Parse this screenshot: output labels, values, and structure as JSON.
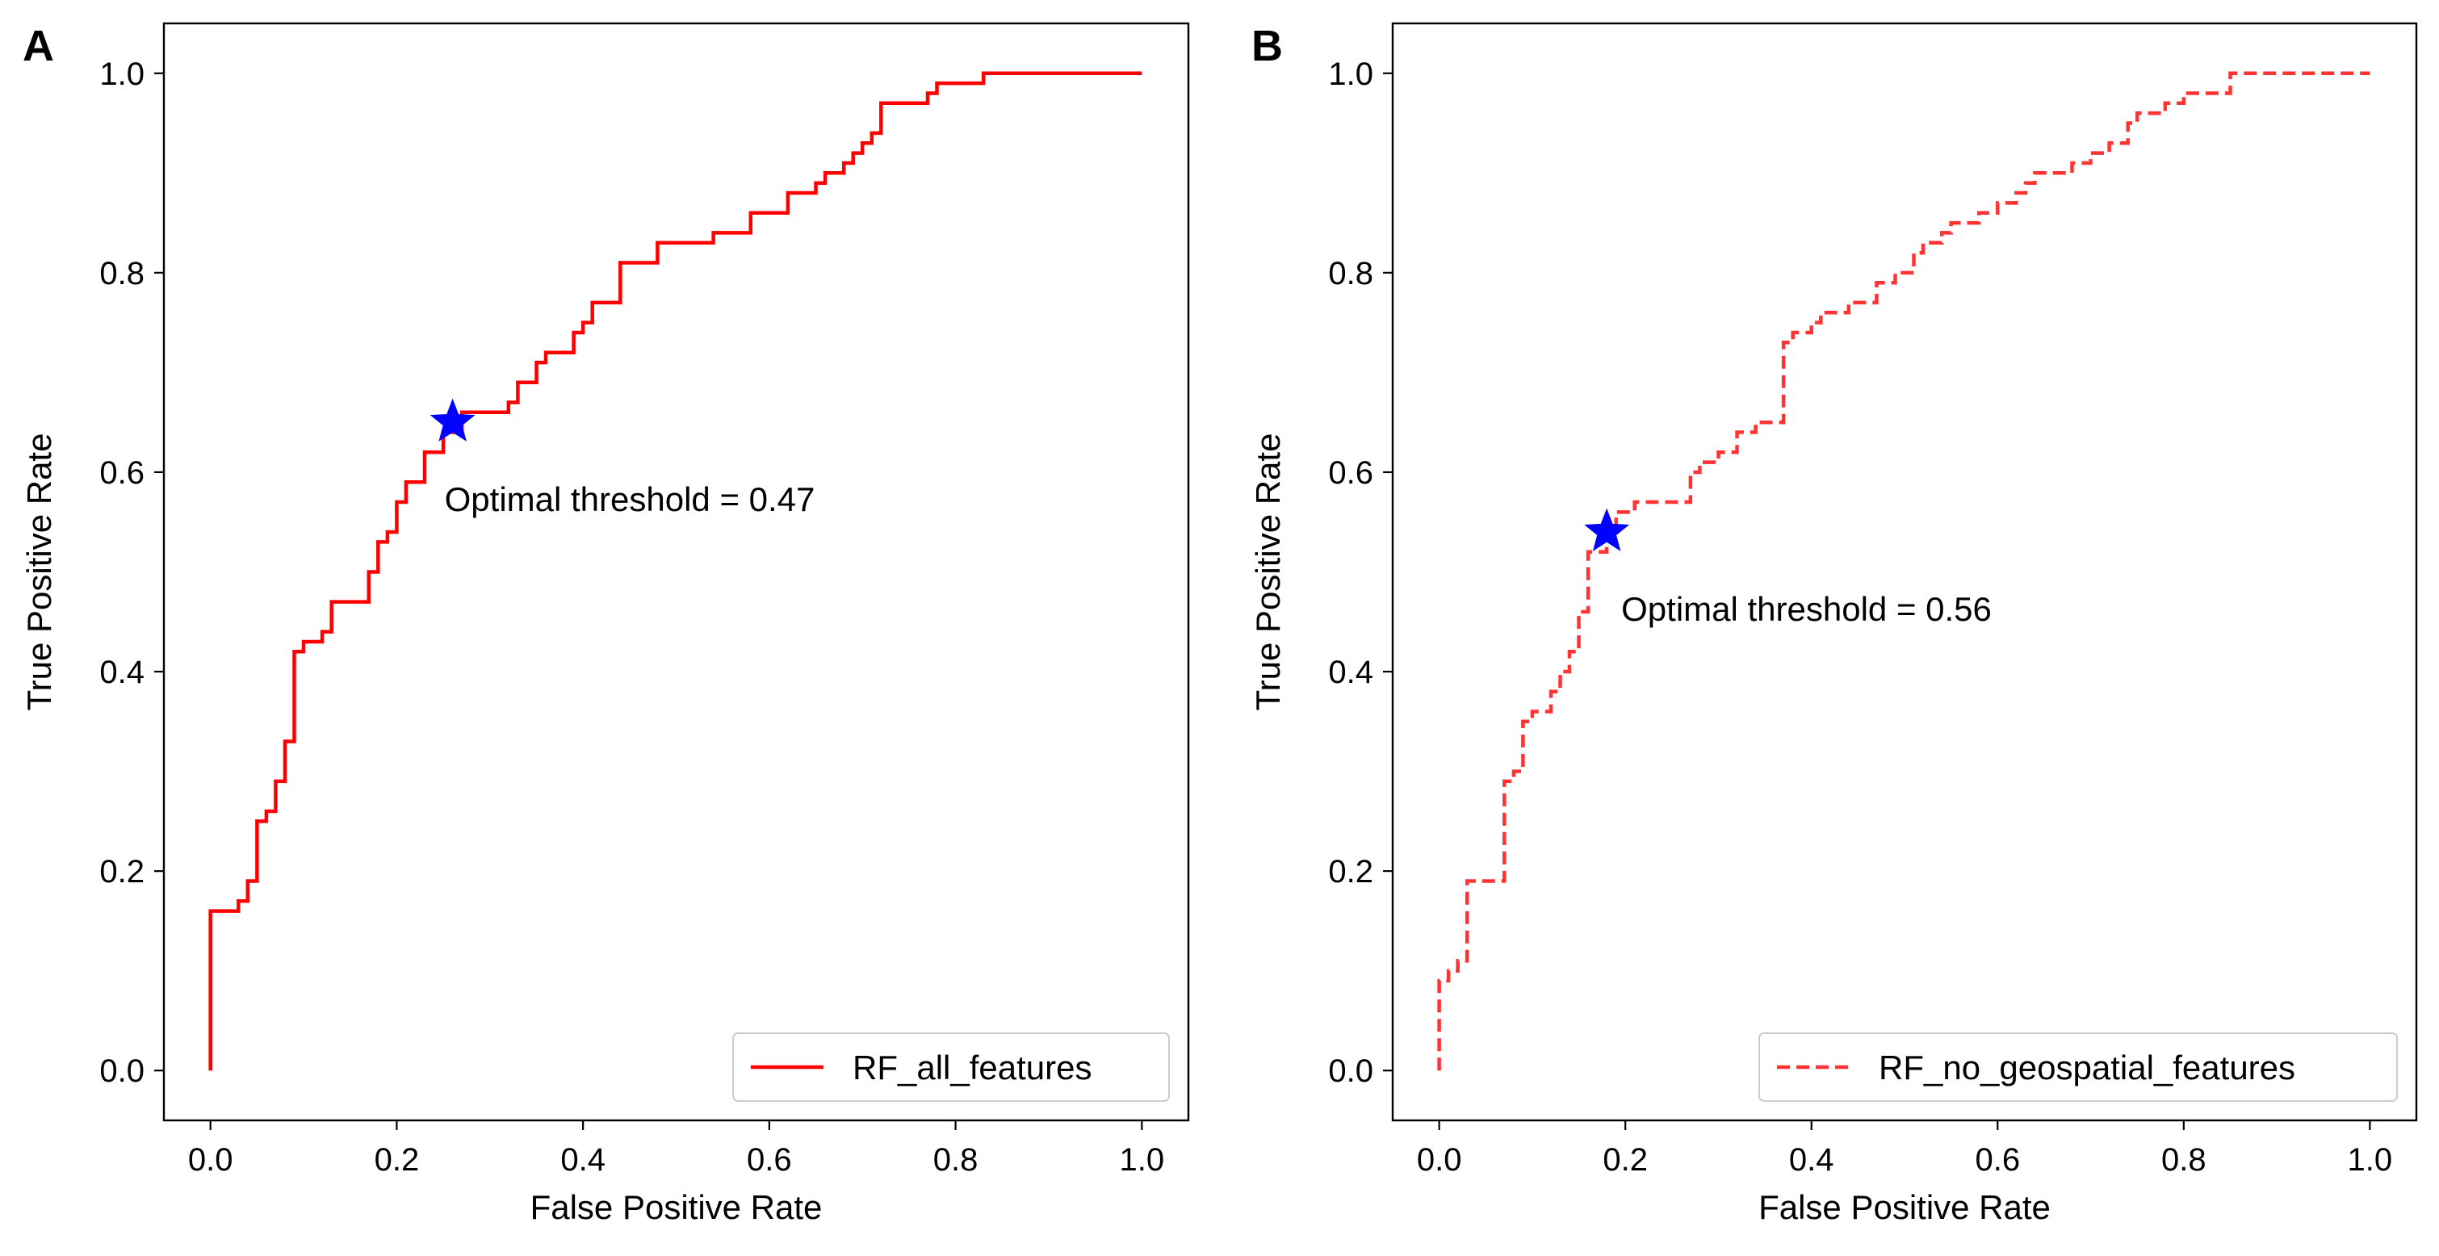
{
  "chart_data": [
    {
      "type": "line",
      "panel_label": "A",
      "xlabel": "False Positive Rate",
      "ylabel": "True Positive Rate",
      "xlim": [
        -0.05,
        1.05
      ],
      "ylim": [
        -0.05,
        1.05
      ],
      "xticks": [
        "0.0",
        "0.2",
        "0.4",
        "0.6",
        "0.8",
        "1.0"
      ],
      "yticks": [
        "0.0",
        "0.2",
        "0.4",
        "0.6",
        "0.8",
        "1.0"
      ],
      "legend_position": "lower-right",
      "series": [
        {
          "name": "RF_all_features",
          "color": "#ff0000",
          "line_style": "solid",
          "x": [
            0,
            0,
            0.03,
            0.03,
            0.04,
            0.04,
            0.05,
            0.05,
            0.06,
            0.06,
            0.07,
            0.07,
            0.08,
            0.08,
            0.09,
            0.09,
            0.1,
            0.1,
            0.12,
            0.12,
            0.13,
            0.13,
            0.17,
            0.17,
            0.18,
            0.18,
            0.19,
            0.19,
            0.2,
            0.2,
            0.21,
            0.21,
            0.23,
            0.23,
            0.25,
            0.25,
            0.27,
            0.27,
            0.32,
            0.32,
            0.33,
            0.33,
            0.35,
            0.35,
            0.36,
            0.36,
            0.39,
            0.39,
            0.4,
            0.4,
            0.41,
            0.41,
            0.44,
            0.44,
            0.48,
            0.48,
            0.54,
            0.54,
            0.58,
            0.58,
            0.62,
            0.62,
            0.65,
            0.65,
            0.66,
            0.66,
            0.68,
            0.68,
            0.69,
            0.69,
            0.7,
            0.7,
            0.71,
            0.71,
            0.72,
            0.72,
            0.77,
            0.77,
            0.78,
            0.78,
            0.83,
            0.83,
            0.88,
            0.88,
            0.9,
            0.9,
            1.0
          ],
          "y": [
            0,
            0.16,
            0.16,
            0.17,
            0.17,
            0.19,
            0.19,
            0.25,
            0.25,
            0.26,
            0.26,
            0.29,
            0.29,
            0.33,
            0.33,
            0.42,
            0.42,
            0.43,
            0.43,
            0.44,
            0.44,
            0.47,
            0.47,
            0.5,
            0.5,
            0.53,
            0.53,
            0.54,
            0.54,
            0.57,
            0.57,
            0.59,
            0.59,
            0.62,
            0.62,
            0.64,
            0.64,
            0.66,
            0.66,
            0.67,
            0.67,
            0.69,
            0.69,
            0.71,
            0.71,
            0.72,
            0.72,
            0.74,
            0.74,
            0.75,
            0.75,
            0.77,
            0.77,
            0.81,
            0.81,
            0.83,
            0.83,
            0.84,
            0.84,
            0.86,
            0.86,
            0.88,
            0.88,
            0.89,
            0.89,
            0.9,
            0.9,
            0.91,
            0.91,
            0.92,
            0.92,
            0.93,
            0.93,
            0.94,
            0.94,
            0.97,
            0.97,
            0.98,
            0.98,
            0.99,
            0.99,
            1.0,
            1.0,
            1.0,
            1.0,
            1.0,
            1.0
          ]
        }
      ],
      "optimal_point": {
        "x": 0.26,
        "y": 0.65,
        "marker": "star",
        "color": "#0000ff"
      },
      "annotation": "Optimal threshold = 0.47"
    },
    {
      "type": "line",
      "panel_label": "B",
      "xlabel": "False Positive Rate",
      "ylabel": "True Positive Rate",
      "xlim": [
        -0.05,
        1.05
      ],
      "ylim": [
        -0.05,
        1.05
      ],
      "xticks": [
        "0.0",
        "0.2",
        "0.4",
        "0.6",
        "0.8",
        "1.0"
      ],
      "yticks": [
        "0.0",
        "0.2",
        "0.4",
        "0.6",
        "0.8",
        "1.0"
      ],
      "legend_position": "lower-right",
      "series": [
        {
          "name": "RF_no_geospatial_features",
          "color": "#ff3333",
          "line_style": "dashed",
          "x": [
            0,
            0,
            0.01,
            0.01,
            0.02,
            0.02,
            0.03,
            0.03,
            0.07,
            0.07,
            0.08,
            0.08,
            0.09,
            0.09,
            0.1,
            0.1,
            0.12,
            0.12,
            0.13,
            0.13,
            0.14,
            0.14,
            0.15,
            0.15,
            0.16,
            0.16,
            0.18,
            0.18,
            0.19,
            0.19,
            0.21,
            0.21,
            0.27,
            0.27,
            0.28,
            0.28,
            0.3,
            0.3,
            0.32,
            0.32,
            0.34,
            0.34,
            0.37,
            0.37,
            0.38,
            0.38,
            0.4,
            0.4,
            0.41,
            0.41,
            0.44,
            0.44,
            0.47,
            0.47,
            0.49,
            0.49,
            0.51,
            0.51,
            0.52,
            0.52,
            0.54,
            0.54,
            0.55,
            0.55,
            0.58,
            0.58,
            0.6,
            0.6,
            0.62,
            0.62,
            0.63,
            0.63,
            0.64,
            0.64,
            0.68,
            0.68,
            0.7,
            0.7,
            0.72,
            0.72,
            0.74,
            0.74,
            0.75,
            0.75,
            0.78,
            0.78,
            0.8,
            0.8,
            0.85,
            0.85,
            0.95,
            0.95,
            1.0
          ],
          "y": [
            0,
            0.09,
            0.09,
            0.1,
            0.1,
            0.11,
            0.11,
            0.19,
            0.19,
            0.29,
            0.29,
            0.3,
            0.3,
            0.35,
            0.35,
            0.36,
            0.36,
            0.38,
            0.38,
            0.4,
            0.4,
            0.42,
            0.42,
            0.46,
            0.46,
            0.52,
            0.52,
            0.54,
            0.54,
            0.56,
            0.56,
            0.57,
            0.57,
            0.6,
            0.6,
            0.61,
            0.61,
            0.62,
            0.62,
            0.64,
            0.64,
            0.65,
            0.65,
            0.73,
            0.73,
            0.74,
            0.74,
            0.75,
            0.75,
            0.76,
            0.76,
            0.77,
            0.77,
            0.79,
            0.79,
            0.8,
            0.8,
            0.82,
            0.82,
            0.83,
            0.83,
            0.84,
            0.84,
            0.85,
            0.85,
            0.86,
            0.86,
            0.87,
            0.87,
            0.88,
            0.88,
            0.89,
            0.89,
            0.9,
            0.9,
            0.91,
            0.91,
            0.92,
            0.92,
            0.93,
            0.93,
            0.95,
            0.95,
            0.96,
            0.96,
            0.97,
            0.97,
            0.98,
            0.98,
            1.0,
            1.0,
            1.0,
            1.0
          ]
        }
      ],
      "optimal_point": {
        "x": 0.18,
        "y": 0.54,
        "marker": "star",
        "color": "#0000ff"
      },
      "annotation": "Optimal threshold = 0.56"
    }
  ]
}
